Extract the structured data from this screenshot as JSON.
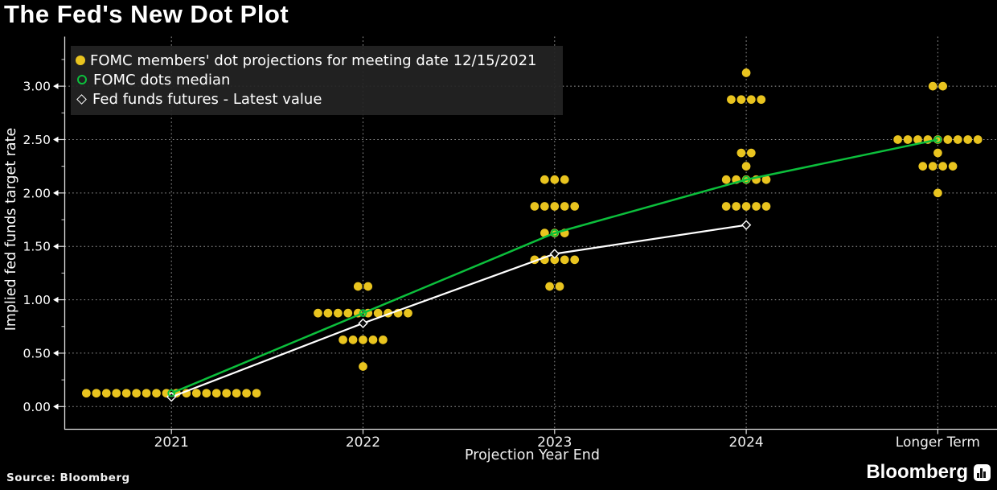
{
  "title": "The Fed's New Dot Plot",
  "source": "Source: Bloomberg",
  "brand": {
    "name": "Bloomberg"
  },
  "colors": {
    "background": "#000000",
    "dots": "#e9c41f",
    "median_line": "#0cbf3c",
    "futures_line": "#ffffff",
    "grid": "#bfbfbf"
  },
  "legend": {
    "items": [
      {
        "label": "FOMC members' dot projections for meeting date 12/15/2021",
        "marker": "filled-dot",
        "color": "#e9c41f"
      },
      {
        "label": "FOMC dots median",
        "marker": "open-circle",
        "color": "#0cbf3c"
      },
      {
        "label": "Fed funds futures - Latest value",
        "marker": "open-diamond",
        "color": "#ffffff"
      }
    ]
  },
  "chart_data": {
    "type": "scatter",
    "title": "The Fed's New Dot Plot",
    "xlabel": "Projection Year End",
    "ylabel": "Implied fed funds target rate",
    "categories": [
      "2021",
      "2022",
      "2023",
      "2024",
      "Longer Term"
    ],
    "y_ticks": [
      0,
      0.5,
      1,
      1.5,
      2,
      2.5,
      3
    ],
    "y_tick_labels": [
      "0.00",
      "0.50",
      "1.00",
      "1.50",
      "2.00",
      "2.50",
      "3.00"
    ],
    "ylim": [
      0,
      3.45
    ],
    "grid": "dotted",
    "legend_position": "top-left",
    "dot_color": "#e9c41f",
    "dots": [
      {
        "category": "2021",
        "value": 0.125,
        "count": 18
      },
      {
        "category": "2022",
        "value": 1.125,
        "count": 2
      },
      {
        "category": "2022",
        "value": 0.875,
        "count": 10
      },
      {
        "category": "2022",
        "value": 0.625,
        "count": 5
      },
      {
        "category": "2022",
        "value": 0.375,
        "count": 1
      },
      {
        "category": "2023",
        "value": 2.125,
        "count": 3
      },
      {
        "category": "2023",
        "value": 1.875,
        "count": 5
      },
      {
        "category": "2023",
        "value": 1.625,
        "count": 3
      },
      {
        "category": "2023",
        "value": 1.375,
        "count": 5
      },
      {
        "category": "2023",
        "value": 1.125,
        "count": 2
      },
      {
        "category": "2024",
        "value": 3.125,
        "count": 1
      },
      {
        "category": "2024",
        "value": 2.875,
        "count": 4
      },
      {
        "category": "2024",
        "value": 2.375,
        "count": 2
      },
      {
        "category": "2024",
        "value": 2.25,
        "count": 1
      },
      {
        "category": "2024",
        "value": 2.125,
        "count": 5
      },
      {
        "category": "2024",
        "value": 1.875,
        "count": 5
      },
      {
        "category": "Longer Term",
        "value": 3.0,
        "count": 2
      },
      {
        "category": "Longer Term",
        "value": 2.5,
        "count": 9
      },
      {
        "category": "Longer Term",
        "value": 2.375,
        "count": 1
      },
      {
        "category": "Longer Term",
        "value": 2.25,
        "count": 4
      },
      {
        "category": "Longer Term",
        "value": 2.0,
        "count": 1
      }
    ],
    "series": [
      {
        "name": "FOMC dots median",
        "type": "line",
        "marker": "open-circle",
        "color": "#0cbf3c",
        "values": [
          0.125,
          0.875,
          1.625,
          2.125,
          2.5
        ]
      },
      {
        "name": "Fed funds futures - Latest value",
        "type": "line",
        "marker": "open-diamond",
        "color": "#ffffff",
        "values": [
          0.09,
          0.78,
          1.43,
          1.7,
          null
        ]
      }
    ]
  }
}
